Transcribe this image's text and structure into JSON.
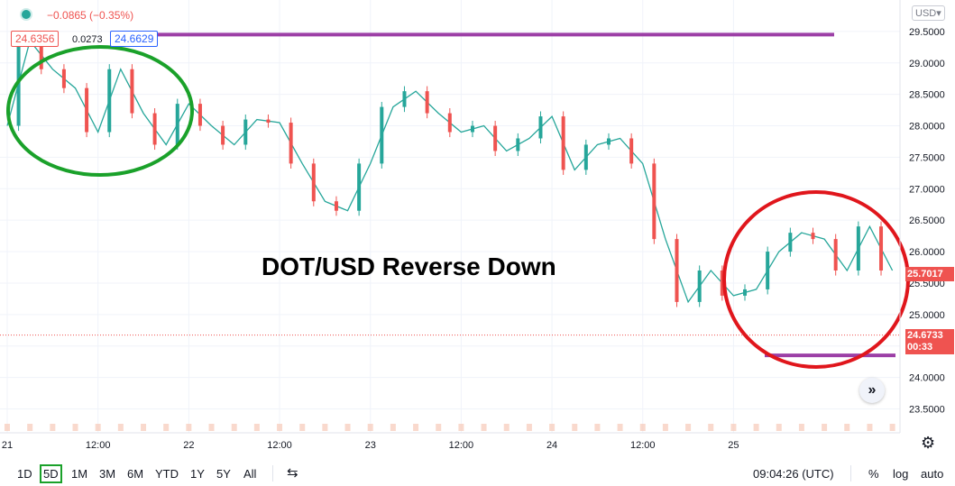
{
  "header": {
    "change_text": "−0.0865 (−0.35%)",
    "bid": "24.6356",
    "spread": "0.0273",
    "ask": "24.6629",
    "currency": "USD"
  },
  "price_labels": {
    "current": "25.7017",
    "last": "24.6733",
    "countdown": "00:33"
  },
  "annotation": {
    "text": "DOT/USD Reverse Down"
  },
  "bottom_bar": {
    "ranges": [
      "1D",
      "5D",
      "1M",
      "3M",
      "6M",
      "YTD",
      "1Y",
      "5Y",
      "All"
    ],
    "selected_range": "5D",
    "clock": "09:04:26 (UTC)",
    "percent": "%",
    "log": "log",
    "auto": "auto"
  },
  "colors": {
    "up": "#26a69a",
    "down": "#ef5350",
    "annotation_green": "#1aa12a",
    "annotation_red": "#e0161c",
    "annotation_purple": "#9c3fa6"
  },
  "chart_data": {
    "type": "line",
    "title": "",
    "x_tick_labels": [
      "21",
      "12:00",
      "22",
      "12:00",
      "23",
      "12:00",
      "24",
      "12:00",
      "25"
    ],
    "y_tick_labels": [
      "23.5000",
      "24.0000",
      "24.5000",
      "25.0000",
      "25.5000",
      "26.0000",
      "26.5000",
      "27.0000",
      "27.5000",
      "28.0000",
      "28.5000",
      "29.0000",
      "29.5000"
    ],
    "ylim": [
      23.12,
      30.0
    ],
    "x_range_hours": [
      0,
      118
    ],
    "series": [
      {
        "x": [
          0,
          3,
          6,
          9,
          12,
          15,
          18,
          21,
          24,
          27,
          30,
          33,
          36,
          39,
          42,
          45,
          48,
          51,
          54,
          57,
          60,
          63,
          66,
          69,
          72,
          75,
          78,
          81,
          84,
          87,
          90,
          93,
          96,
          99,
          102,
          105,
          108,
          111,
          114,
          117
        ],
        "values": [
          28.0,
          29.35,
          28.9,
          28.6,
          27.9,
          28.9,
          28.2,
          27.7,
          28.35,
          28.0,
          27.7,
          28.1,
          28.05,
          27.4,
          26.8,
          26.65,
          27.4,
          28.3,
          28.55,
          28.2,
          27.9,
          28.0,
          27.6,
          27.8,
          28.15,
          27.3,
          27.7,
          27.8,
          27.4,
          26.2,
          25.2,
          25.7,
          25.3,
          25.4,
          26.0,
          26.3,
          26.2,
          25.7,
          26.4,
          25.7
        ]
      }
    ],
    "horizontal_levels": [
      29.45,
      24.35
    ],
    "last_price_line": 24.6733
  }
}
